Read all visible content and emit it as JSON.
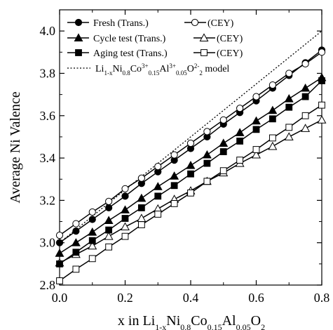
{
  "chart_data": {
    "type": "line",
    "xlabel": {
      "parts": [
        {
          "t": "x in Li",
          "s": ""
        },
        {
          "t": "1-x",
          "s": "sub"
        },
        {
          "t": "Ni",
          "s": ""
        },
        {
          "t": "0.8",
          "s": "sub"
        },
        {
          "t": "Co",
          "s": ""
        },
        {
          "t": "0.15",
          "s": "sub"
        },
        {
          "t": "Al",
          "s": ""
        },
        {
          "t": "0.05",
          "s": "sub"
        },
        {
          "t": "O",
          "s": ""
        },
        {
          "t": "2",
          "s": "sub"
        }
      ]
    },
    "ylabel": "Average Ni Valence",
    "xlim": [
      0.0,
      0.8
    ],
    "ylim": [
      2.8,
      4.1
    ],
    "xticks": [
      0.0,
      0.2,
      0.4,
      0.6,
      0.8
    ],
    "xtick_labels": [
      "0.0",
      "0.2",
      "0.4",
      "0.6",
      "0.8"
    ],
    "yticks": [
      2.8,
      3.0,
      3.2,
      3.4,
      3.6,
      3.8,
      4.0
    ],
    "ytick_labels": [
      "2.8",
      "3.0",
      "3.2",
      "3.4",
      "3.6",
      "3.8",
      "4.0"
    ],
    "x": [
      0.0,
      0.05,
      0.1,
      0.15,
      0.2,
      0.25,
      0.3,
      0.35,
      0.4,
      0.45,
      0.5,
      0.55,
      0.6,
      0.65,
      0.7,
      0.75,
      0.8
    ],
    "series": [
      {
        "name": "Fresh (Trans.)",
        "marker": "circle",
        "filled": true,
        "values": [
          3.0,
          3.055,
          3.11,
          3.165,
          3.22,
          3.28,
          3.335,
          3.39,
          3.445,
          3.5,
          3.56,
          3.615,
          3.67,
          3.73,
          3.79,
          3.85,
          3.91
        ]
      },
      {
        "name": "(CEY)",
        "marker": "circle",
        "filled": false,
        "values": [
          3.035,
          3.09,
          3.145,
          3.195,
          3.255,
          3.305,
          3.36,
          3.415,
          3.47,
          3.525,
          3.58,
          3.635,
          3.69,
          3.745,
          3.8,
          3.845,
          3.9
        ]
      },
      {
        "name": "Cycle test (Trans.)",
        "marker": "triangle",
        "filled": true,
        "values": [
          2.95,
          3.0,
          3.05,
          3.105,
          3.155,
          3.21,
          3.265,
          3.315,
          3.365,
          3.415,
          3.47,
          3.52,
          3.575,
          3.625,
          3.68,
          3.73,
          3.78
        ]
      },
      {
        "name": "(CEY)",
        "marker": "triangle",
        "filled": false,
        "values": [
          2.905,
          2.945,
          2.985,
          3.03,
          3.075,
          3.115,
          3.16,
          3.205,
          3.245,
          3.29,
          3.33,
          3.375,
          3.415,
          3.455,
          3.5,
          3.54,
          3.58
        ]
      },
      {
        "name": "Aging test (Trans.)",
        "marker": "square",
        "filled": true,
        "values": [
          2.9,
          2.955,
          3.01,
          3.06,
          3.115,
          3.165,
          3.22,
          3.27,
          3.325,
          3.375,
          3.43,
          3.48,
          3.535,
          3.585,
          3.64,
          3.69,
          3.765
        ]
      },
      {
        "name": "(CEY)",
        "marker": "square",
        "filled": false,
        "values": [
          2.82,
          2.875,
          2.925,
          2.98,
          3.03,
          3.085,
          3.135,
          3.185,
          3.235,
          3.29,
          3.34,
          3.39,
          3.44,
          3.495,
          3.545,
          3.6,
          3.65
        ]
      }
    ],
    "model": {
      "style": "dotted",
      "x": [
        0.0,
        0.8
      ],
      "values": [
        3.0,
        4.0
      ],
      "label_parts": [
        {
          "t": "Li",
          "s": ""
        },
        {
          "t": "1-x",
          "s": "sub"
        },
        {
          "t": "Ni",
          "s": ""
        },
        {
          "t": "0.8",
          "s": "sub"
        },
        {
          "t": "Co",
          "s": ""
        },
        {
          "t": "3+",
          "s": "sup"
        },
        {
          "t": "0.15",
          "s": "sub"
        },
        {
          "t": "Al",
          "s": ""
        },
        {
          "t": "3+",
          "s": "sup"
        },
        {
          "t": "0.05",
          "s": "sub"
        },
        {
          "t": "O",
          "s": ""
        },
        {
          "t": "2-",
          "s": "sup"
        },
        {
          "t": "2",
          "s": "sub"
        },
        {
          "t": " model",
          "s": ""
        }
      ]
    },
    "legend_position": "top-left",
    "grid": false,
    "colors": {
      "line": "#000000",
      "background": "#ffffff"
    }
  }
}
